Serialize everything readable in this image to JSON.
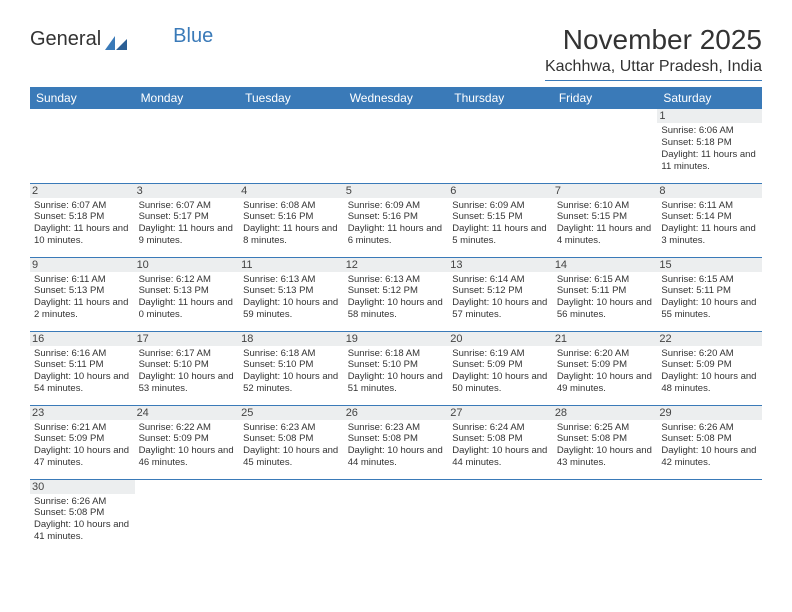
{
  "logo": {
    "text_a": "General",
    "text_b": "Blue"
  },
  "title": "November 2025",
  "location": "Kachhwa, Uttar Pradesh, India",
  "dayHeaders": [
    "Sunday",
    "Monday",
    "Tuesday",
    "Wednesday",
    "Thursday",
    "Friday",
    "Saturday"
  ],
  "colors": {
    "header_bg": "#3a7ab8",
    "header_text": "#ffffff",
    "daynum_bg": "#eceeef",
    "body_text": "#333333",
    "page_bg": "#ffffff"
  },
  "weeks": [
    [
      {
        "empty": true
      },
      {
        "empty": true
      },
      {
        "empty": true
      },
      {
        "empty": true
      },
      {
        "empty": true
      },
      {
        "empty": true
      },
      {
        "n": "1",
        "sr": "Sunrise: 6:06 AM",
        "ss": "Sunset: 5:18 PM",
        "dl": "Daylight: 11 hours and 11 minutes."
      }
    ],
    [
      {
        "n": "2",
        "sr": "Sunrise: 6:07 AM",
        "ss": "Sunset: 5:18 PM",
        "dl": "Daylight: 11 hours and 10 minutes."
      },
      {
        "n": "3",
        "sr": "Sunrise: 6:07 AM",
        "ss": "Sunset: 5:17 PM",
        "dl": "Daylight: 11 hours and 9 minutes."
      },
      {
        "n": "4",
        "sr": "Sunrise: 6:08 AM",
        "ss": "Sunset: 5:16 PM",
        "dl": "Daylight: 11 hours and 8 minutes."
      },
      {
        "n": "5",
        "sr": "Sunrise: 6:09 AM",
        "ss": "Sunset: 5:16 PM",
        "dl": "Daylight: 11 hours and 6 minutes."
      },
      {
        "n": "6",
        "sr": "Sunrise: 6:09 AM",
        "ss": "Sunset: 5:15 PM",
        "dl": "Daylight: 11 hours and 5 minutes."
      },
      {
        "n": "7",
        "sr": "Sunrise: 6:10 AM",
        "ss": "Sunset: 5:15 PM",
        "dl": "Daylight: 11 hours and 4 minutes."
      },
      {
        "n": "8",
        "sr": "Sunrise: 6:11 AM",
        "ss": "Sunset: 5:14 PM",
        "dl": "Daylight: 11 hours and 3 minutes."
      }
    ],
    [
      {
        "n": "9",
        "sr": "Sunrise: 6:11 AM",
        "ss": "Sunset: 5:13 PM",
        "dl": "Daylight: 11 hours and 2 minutes."
      },
      {
        "n": "10",
        "sr": "Sunrise: 6:12 AM",
        "ss": "Sunset: 5:13 PM",
        "dl": "Daylight: 11 hours and 0 minutes."
      },
      {
        "n": "11",
        "sr": "Sunrise: 6:13 AM",
        "ss": "Sunset: 5:13 PM",
        "dl": "Daylight: 10 hours and 59 minutes."
      },
      {
        "n": "12",
        "sr": "Sunrise: 6:13 AM",
        "ss": "Sunset: 5:12 PM",
        "dl": "Daylight: 10 hours and 58 minutes."
      },
      {
        "n": "13",
        "sr": "Sunrise: 6:14 AM",
        "ss": "Sunset: 5:12 PM",
        "dl": "Daylight: 10 hours and 57 minutes."
      },
      {
        "n": "14",
        "sr": "Sunrise: 6:15 AM",
        "ss": "Sunset: 5:11 PM",
        "dl": "Daylight: 10 hours and 56 minutes."
      },
      {
        "n": "15",
        "sr": "Sunrise: 6:15 AM",
        "ss": "Sunset: 5:11 PM",
        "dl": "Daylight: 10 hours and 55 minutes."
      }
    ],
    [
      {
        "n": "16",
        "sr": "Sunrise: 6:16 AM",
        "ss": "Sunset: 5:11 PM",
        "dl": "Daylight: 10 hours and 54 minutes."
      },
      {
        "n": "17",
        "sr": "Sunrise: 6:17 AM",
        "ss": "Sunset: 5:10 PM",
        "dl": "Daylight: 10 hours and 53 minutes."
      },
      {
        "n": "18",
        "sr": "Sunrise: 6:18 AM",
        "ss": "Sunset: 5:10 PM",
        "dl": "Daylight: 10 hours and 52 minutes."
      },
      {
        "n": "19",
        "sr": "Sunrise: 6:18 AM",
        "ss": "Sunset: 5:10 PM",
        "dl": "Daylight: 10 hours and 51 minutes."
      },
      {
        "n": "20",
        "sr": "Sunrise: 6:19 AM",
        "ss": "Sunset: 5:09 PM",
        "dl": "Daylight: 10 hours and 50 minutes."
      },
      {
        "n": "21",
        "sr": "Sunrise: 6:20 AM",
        "ss": "Sunset: 5:09 PM",
        "dl": "Daylight: 10 hours and 49 minutes."
      },
      {
        "n": "22",
        "sr": "Sunrise: 6:20 AM",
        "ss": "Sunset: 5:09 PM",
        "dl": "Daylight: 10 hours and 48 minutes."
      }
    ],
    [
      {
        "n": "23",
        "sr": "Sunrise: 6:21 AM",
        "ss": "Sunset: 5:09 PM",
        "dl": "Daylight: 10 hours and 47 minutes."
      },
      {
        "n": "24",
        "sr": "Sunrise: 6:22 AM",
        "ss": "Sunset: 5:09 PM",
        "dl": "Daylight: 10 hours and 46 minutes."
      },
      {
        "n": "25",
        "sr": "Sunrise: 6:23 AM",
        "ss": "Sunset: 5:08 PM",
        "dl": "Daylight: 10 hours and 45 minutes."
      },
      {
        "n": "26",
        "sr": "Sunrise: 6:23 AM",
        "ss": "Sunset: 5:08 PM",
        "dl": "Daylight: 10 hours and 44 minutes."
      },
      {
        "n": "27",
        "sr": "Sunrise: 6:24 AM",
        "ss": "Sunset: 5:08 PM",
        "dl": "Daylight: 10 hours and 44 minutes."
      },
      {
        "n": "28",
        "sr": "Sunrise: 6:25 AM",
        "ss": "Sunset: 5:08 PM",
        "dl": "Daylight: 10 hours and 43 minutes."
      },
      {
        "n": "29",
        "sr": "Sunrise: 6:26 AM",
        "ss": "Sunset: 5:08 PM",
        "dl": "Daylight: 10 hours and 42 minutes."
      }
    ],
    [
      {
        "n": "30",
        "sr": "Sunrise: 6:26 AM",
        "ss": "Sunset: 5:08 PM",
        "dl": "Daylight: 10 hours and 41 minutes."
      },
      {
        "empty": true
      },
      {
        "empty": true
      },
      {
        "empty": true
      },
      {
        "empty": true
      },
      {
        "empty": true
      },
      {
        "empty": true
      }
    ]
  ]
}
